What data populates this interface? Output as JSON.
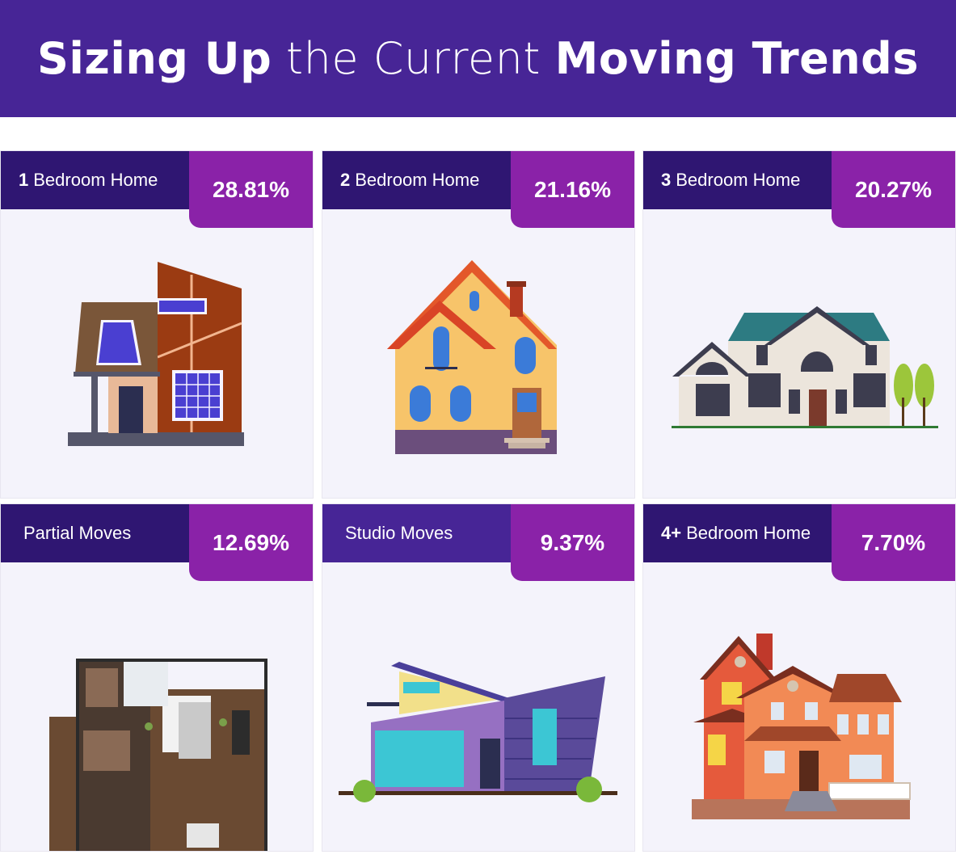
{
  "header": {
    "title_part1": "Sizing Up",
    "title_part2": " the Current ",
    "title_part3": "Moving Trends"
  },
  "cards": [
    {
      "number": "1",
      "label": "Bedroom Home",
      "percent": "28.81%",
      "icon": "modern-house-icon"
    },
    {
      "number": "2",
      "label": "Bedroom Home",
      "percent": "21.16%",
      "icon": "cottage-house-icon"
    },
    {
      "number": "3",
      "label": "Bedroom Home",
      "percent": "20.27%",
      "icon": "mansion-house-icon"
    },
    {
      "number": "",
      "label": "Partial Moves",
      "percent": "12.69%",
      "icon": "floor-plan-icon"
    },
    {
      "number": "",
      "label": "Studio Moves",
      "percent": "9.37%",
      "icon": "studio-house-icon"
    },
    {
      "number": "4+",
      "label": "Bedroom Home",
      "percent": "7.70%",
      "icon": "large-brick-house-icon"
    }
  ],
  "colors": {
    "header_bg": "#472596",
    "label_bar": "#2f1672",
    "percent_tab": "#8a22a8",
    "card_bg": "#f4f3fb"
  }
}
